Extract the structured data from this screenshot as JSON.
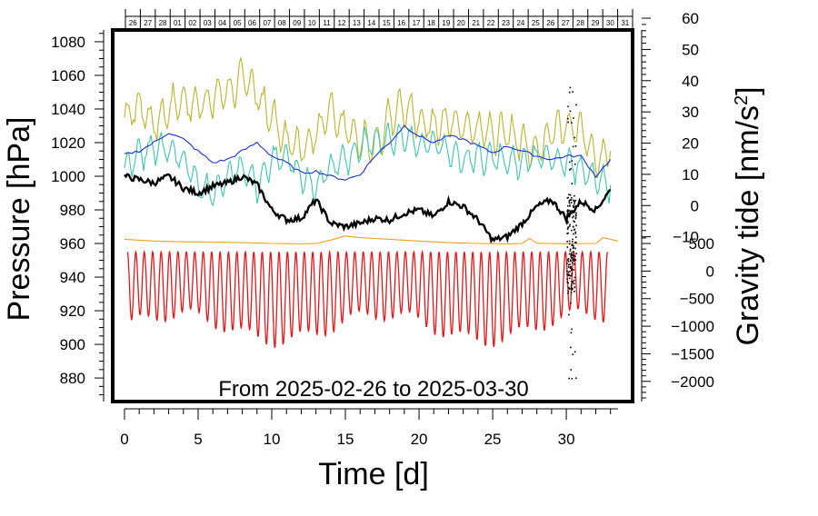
{
  "chart_data": {
    "type": "line",
    "annotation": "From 2025-02-26 to 2025-03-30",
    "xlabel": "Time [d]",
    "ylabel_left": "Pressure [hPa]",
    "ylabel_right": "Gravity tide [nm/s",
    "ylabel_right_sup": "2",
    "ylabel_right_end": "]",
    "xlim": [
      -0.8,
      34.5
    ],
    "ylim": [
      866,
      1087
    ],
    "x_ticks": [
      0,
      5,
      10,
      15,
      20,
      25,
      30
    ],
    "x_tick_labels": [
      "0",
      "5",
      "10",
      "15",
      "20",
      "25",
      "30"
    ],
    "y_left_ticks": [
      880,
      900,
      920,
      940,
      960,
      980,
      1000,
      1020,
      1040,
      1060,
      1080
    ],
    "y_left_tick_labels": [
      "880",
      "900",
      "920",
      "940",
      "960",
      "980",
      "1000",
      "1020",
      "1040",
      "1060",
      "1080"
    ],
    "right_upper_scale": {
      "range": [
        -10,
        60
      ],
      "maps_to_pressure": [
        964,
        1094
      ]
    },
    "right_upper_tick_labels": [
      "60",
      "50",
      "40",
      "30",
      "20",
      "10",
      "0",
      "−10"
    ],
    "right_upper_ticks": [
      60,
      50,
      40,
      30,
      20,
      10,
      0,
      -10
    ],
    "right_lower_scale": {
      "range": [
        -2000,
        500
      ],
      "maps_to_pressure": [
        878,
        960
      ]
    },
    "right_lower_tick_labels": [
      "500",
      "0",
      "−500",
      "−1000",
      "−1500",
      "−2000"
    ],
    "right_lower_ticks": [
      500,
      0,
      -500,
      -1000,
      -1500,
      -2000
    ],
    "date_labels": [
      "26",
      "27",
      "28",
      "01",
      "02",
      "03",
      "04",
      "05",
      "06",
      "07",
      "08",
      "09",
      "10",
      "11",
      "12",
      "13",
      "14",
      "15",
      "16",
      "17",
      "18",
      "19",
      "20",
      "21",
      "22",
      "23",
      "24",
      "25",
      "26",
      "27",
      "28",
      "29",
      "30",
      "31"
    ],
    "colors": {
      "frame": "#000000",
      "olive": "#bdb52a",
      "teal": "#3cc8b4",
      "blue": "#1f2fd6",
      "black": "#000000",
      "orange": "#f0a020",
      "red": "#e8161a"
    },
    "series": [
      {
        "name": "olive",
        "color": "#bdb52a",
        "x": [
          0,
          1,
          2,
          3,
          4,
          5,
          6,
          7,
          8,
          9,
          10,
          11,
          12,
          13,
          14,
          15,
          16,
          17,
          18,
          19,
          20,
          21,
          22,
          23,
          24,
          25,
          26,
          27,
          28,
          29,
          30,
          31,
          32,
          33
        ],
        "y": [
          1035,
          1042,
          1030,
          1040,
          1045,
          1042,
          1048,
          1050,
          1060,
          1048,
          1035,
          1020,
          1015,
          1025,
          1040,
          1028,
          1022,
          1018,
          1035,
          1042,
          1032,
          1030,
          1034,
          1028,
          1028,
          1026,
          1025,
          1020,
          1015,
          1025,
          1030,
          1028,
          1010,
          1015
        ]
      },
      {
        "name": "teal",
        "color": "#3cc8b4",
        "x": [
          0,
          1,
          2,
          3,
          4,
          5,
          6,
          7,
          8,
          9,
          10,
          11,
          12,
          13,
          14,
          15,
          16,
          17,
          18,
          19,
          20,
          21,
          22,
          23,
          24,
          25,
          26,
          27,
          28,
          29,
          30,
          31,
          32,
          33
        ],
        "y": [
          1005,
          1012,
          1018,
          1015,
          1010,
          995,
          990,
          1000,
          1005,
          995,
          1010,
          1012,
          1000,
          995,
          1005,
          1010,
          1018,
          1022,
          1020,
          1025,
          1018,
          1020,
          1015,
          1010,
          1012,
          1010,
          1010,
          1008,
          1012,
          1010,
          1008,
          1005,
          1000,
          995
        ]
      },
      {
        "name": "blue",
        "color": "#1f2fd6",
        "x": [
          0,
          1,
          2,
          3,
          4,
          5,
          6,
          7,
          8,
          9,
          10,
          11,
          12,
          13,
          14,
          15,
          16,
          17,
          18,
          19,
          20,
          21,
          22,
          23,
          24,
          25,
          26,
          27,
          28,
          29,
          30,
          31,
          32,
          33
        ],
        "y": [
          1013,
          1015,
          1020,
          1026,
          1022,
          1015,
          1008,
          1010,
          1015,
          1020,
          1012,
          1008,
          1002,
          1003,
          1000,
          998,
          1001,
          1012,
          1020,
          1030,
          1024,
          1020,
          1024,
          1022,
          1018,
          1014,
          1018,
          1015,
          1012,
          1010,
          1012,
          1012,
          1000,
          1010
        ]
      },
      {
        "name": "black",
        "color": "#000000",
        "x": [
          0,
          1,
          2,
          3,
          4,
          5,
          6,
          7,
          8,
          9,
          10,
          11,
          12,
          13,
          14,
          15,
          16,
          17,
          18,
          19,
          20,
          21,
          22,
          23,
          24,
          25,
          26,
          27,
          28,
          29,
          30,
          31,
          32,
          33
        ],
        "y": [
          1000,
          998,
          996,
          1000,
          993,
          990,
          994,
          996,
          1000,
          995,
          980,
          974,
          975,
          986,
          972,
          970,
          972,
          975,
          974,
          978,
          980,
          976,
          985,
          982,
          974,
          962,
          964,
          972,
          982,
          986,
          975,
          985,
          980,
          992
        ]
      },
      {
        "name": "orange",
        "color": "#f0a020",
        "x": [
          0,
          2,
          4,
          6,
          8,
          10,
          12,
          13,
          14,
          15,
          16,
          18,
          20,
          22,
          24,
          26,
          27,
          27.5,
          28,
          30,
          32,
          32.5,
          33.5
        ],
        "y": [
          962.5,
          961.5,
          961,
          960.8,
          960.5,
          960,
          959.8,
          960,
          962,
          964.5,
          963.5,
          962.5,
          961.5,
          960.5,
          960,
          959.8,
          960,
          963,
          960.2,
          959.8,
          960,
          963.5,
          961.5
        ]
      },
      {
        "name": "red",
        "color": "#e8161a",
        "cycles": 57,
        "x_range": [
          0.2,
          32.8
        ],
        "y_high": [
          955,
          952
        ],
        "y_low": [
          910,
          910
        ]
      }
    ],
    "scatter_band": {
      "x": [
        30.0,
        31.8
      ],
      "y_range": [
        880,
        1058
      ]
    }
  }
}
